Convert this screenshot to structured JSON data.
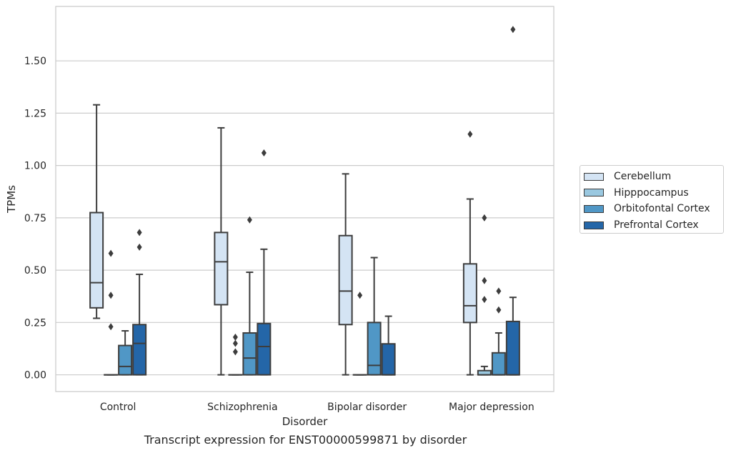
{
  "caption": "Transcript expression for ENST00000599871 by disorder",
  "chart_data": {
    "type": "boxplot",
    "xlabel": "Disorder",
    "ylabel": "TPMs",
    "ylim": [
      -0.08,
      1.76
    ],
    "yticks": [
      "0.00",
      "0.25",
      "0.50",
      "0.75",
      "1.00",
      "1.25",
      "1.50"
    ],
    "grid": true,
    "legend_position": "right",
    "categories": [
      "Control",
      "Schizophrenia",
      "Bipolar disorder",
      "Major depression"
    ],
    "series": [
      {
        "name": "Cerebellum",
        "color": "#d4e4f4",
        "boxes": [
          {
            "whislo": 0.27,
            "q1": 0.32,
            "med": 0.44,
            "q3": 0.775,
            "whishi": 1.29,
            "fliers": []
          },
          {
            "whislo": 0.0,
            "q1": 0.335,
            "med": 0.54,
            "q3": 0.68,
            "whishi": 1.18,
            "fliers": []
          },
          {
            "whislo": 0.0,
            "q1": 0.24,
            "med": 0.4,
            "q3": 0.665,
            "whishi": 0.96,
            "fliers": []
          },
          {
            "whislo": 0.0,
            "q1": 0.25,
            "med": 0.33,
            "q3": 0.53,
            "whishi": 0.84,
            "fliers": [
              1.15
            ]
          }
        ]
      },
      {
        "name": "Hipppocampus",
        "color": "#9ac8e0",
        "boxes": [
          {
            "whislo": 0.0,
            "q1": 0.0,
            "med": 0.0,
            "q3": 0.0,
            "whishi": 0.0,
            "fliers": [
              0.58,
              0.38,
              0.23
            ]
          },
          {
            "whislo": 0.0,
            "q1": 0.0,
            "med": 0.0,
            "q3": 0.0,
            "whishi": 0.0,
            "fliers": [
              0.18,
              0.15,
              0.11
            ]
          },
          {
            "whislo": 0.0,
            "q1": 0.0,
            "med": 0.0,
            "q3": 0.0,
            "whishi": 0.0,
            "fliers": [
              0.38
            ]
          },
          {
            "whislo": 0.0,
            "q1": 0.0,
            "med": 0.0,
            "q3": 0.02,
            "whishi": 0.04,
            "fliers": [
              0.75,
              0.45,
              0.36
            ]
          }
        ]
      },
      {
        "name": "Orbitofontal Cortex",
        "color": "#5097c6",
        "boxes": [
          {
            "whislo": 0.0,
            "q1": 0.0,
            "med": 0.04,
            "q3": 0.14,
            "whishi": 0.21,
            "fliers": []
          },
          {
            "whislo": 0.0,
            "q1": 0.0,
            "med": 0.08,
            "q3": 0.2,
            "whishi": 0.49,
            "fliers": [
              0.74
            ]
          },
          {
            "whislo": 0.0,
            "q1": 0.0,
            "med": 0.045,
            "q3": 0.25,
            "whishi": 0.56,
            "fliers": []
          },
          {
            "whislo": 0.0,
            "q1": 0.0,
            "med": 0.0,
            "q3": 0.105,
            "whishi": 0.2,
            "fliers": [
              0.4,
              0.31
            ]
          }
        ]
      },
      {
        "name": "Prefrontal Cortex",
        "color": "#2466a8",
        "boxes": [
          {
            "whislo": 0.0,
            "q1": 0.0,
            "med": 0.15,
            "q3": 0.24,
            "whishi": 0.48,
            "fliers": [
              0.68,
              0.61
            ]
          },
          {
            "whislo": 0.0,
            "q1": 0.0,
            "med": 0.135,
            "q3": 0.245,
            "whishi": 0.6,
            "fliers": [
              1.06
            ]
          },
          {
            "whislo": 0.0,
            "q1": 0.0,
            "med": 0.0,
            "q3": 0.148,
            "whishi": 0.28,
            "fliers": []
          },
          {
            "whislo": 0.0,
            "q1": 0.0,
            "med": 0.0,
            "q3": 0.255,
            "whishi": 0.37,
            "fliers": [
              1.65
            ]
          }
        ]
      }
    ]
  }
}
